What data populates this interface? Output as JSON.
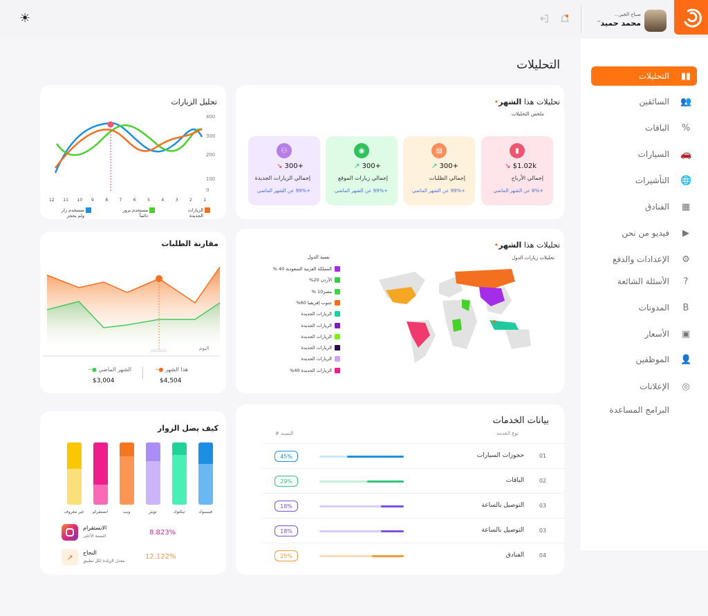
{
  "header": {
    "greeting": "صباح الخير...",
    "user_name": "محمد حميد",
    "chevron": "⌄",
    "bell": "🔔",
    "logout": "⇦",
    "theme": "☀"
  },
  "page_title": "التحليلات",
  "sidebar": {
    "items": [
      {
        "label": "التحليلات",
        "icon": "▮▮"
      },
      {
        "label": "السائقين",
        "icon": "👥"
      },
      {
        "label": "الباقات",
        "icon": "%"
      },
      {
        "label": "السيارات",
        "icon": "🚗"
      },
      {
        "label": "التأشيرات",
        "icon": "🌐"
      },
      {
        "label": "الفنادق",
        "icon": "▦"
      },
      {
        "label": "فيديو من نحن",
        "icon": "▶"
      },
      {
        "label": "الإعدادات والدفع",
        "icon": "⚙"
      },
      {
        "label": "الأسئلة الشائعة",
        "icon": "?"
      },
      {
        "label": "المدونات",
        "icon": "B"
      },
      {
        "label": "الأسعار",
        "icon": "▣"
      },
      {
        "label": "الموظفين",
        "icon": "👤"
      },
      {
        "label": "الإعلانات",
        "icon": "◎"
      },
      {
        "label": "البرامج المساعدة",
        "icon": ""
      }
    ]
  },
  "monthly": {
    "title_prefix": "تحليلات هذا",
    "title_bold": "الشهر",
    "subtitle": "ملخص التحليلات",
    "cards": [
      {
        "icon": "▮",
        "value": "$1.02k",
        "label": "إجمالي الأرباح",
        "change": "+8% عن الشهر الماضي",
        "trend": "down",
        "bg": "#ffe4ea",
        "icbg": "#f0566f"
      },
      {
        "icon": "▤",
        "value": "300+",
        "label": "إجمالي الطلبات",
        "change": "+99% عن الشهر الماضي",
        "trend": "up",
        "bg": "#fff2dd",
        "icbg": "#ff8e5c"
      },
      {
        "icon": "◉",
        "value": "300+",
        "label": "إجمالي زيارات الموقع",
        "change": "+99% عن الشهر الماضي",
        "trend": "up",
        "bg": "#defbe6",
        "icbg": "#30c25a"
      },
      {
        "icon": "⚇",
        "value": "300+",
        "label": "إجمالي الزيارات الجديدة",
        "change": "+99% عن الشهر الماضي",
        "trend": "down",
        "bg": "#f2e8ff",
        "icbg": "#b77ee8"
      }
    ]
  },
  "visits": {
    "title": "تحليل الزيارات",
    "ylabels": [
      "400",
      "300",
      "200",
      "100",
      "0"
    ],
    "xlabels": [
      "12",
      "11",
      "10",
      "9",
      "8",
      "7",
      "6",
      "5",
      "4",
      "3",
      "2",
      "1"
    ],
    "legend": [
      {
        "label": "الزيارات الجديدة",
        "color": "#f37021"
      },
      {
        "label": "مستخدم يزور دائماً",
        "color": "#47d22a"
      },
      {
        "label": "مستخدم زار ولم يحجز",
        "color": "#1a8fe3"
      }
    ]
  },
  "countries": {
    "title_prefix": "تحليلات هذا",
    "title_bold": "الشهر",
    "subtitle": "تحليلات زيارات الدول",
    "legend_title": "نسبة الدول",
    "legend": [
      {
        "label": "المملكة العربية السعودية 40 %",
        "color": "#a42de8"
      },
      {
        "label": "الأردن 20%",
        "color": "#37c94a"
      },
      {
        "label": "مصر10 %",
        "color": "#43d34a"
      },
      {
        "label": "جنوب إفريقيا 60%",
        "color": "#f37021"
      },
      {
        "label": "الزيارات الجديدة",
        "color": "#17d19e"
      },
      {
        "label": "الزيارات الجديدة",
        "color": "#7d1fb5"
      },
      {
        "label": "الزيارات الجديدة",
        "color": "#7ef01a"
      },
      {
        "label": "الزيارات الجديدة",
        "color": "#2a0a48"
      },
      {
        "label": "الزيارات الجديدة",
        "color": "#d3a3f5"
      },
      {
        "label": "الزيارات الجديدة 40%",
        "color": "#ee1f8d"
      }
    ]
  },
  "orders": {
    "title": "مقارنة الطلبات",
    "axis_label": "اليوم",
    "tick": "2022/02/25",
    "this_month_label": "هذا الشهر",
    "this_month_value": "$4,504",
    "last_month_label": "الشهر الماضي",
    "last_month_value": "$3,004"
  },
  "services": {
    "title": "بيانات الخدمات",
    "col_type": "نوع الخدمة",
    "col_pct": "النسبة #",
    "rows": [
      {
        "num": "01",
        "name": "حجوزات السيارات",
        "pct": "45%",
        "color": "#1a8fe3",
        "light": "#cfe7f9",
        "fill": 0.45
      },
      {
        "num": "02",
        "name": "الباقات",
        "pct": "29%",
        "color": "#2ec47a",
        "light": "#c5f0da",
        "fill": 0.29
      },
      {
        "num": "03",
        "name": "التوصيل بالساعة",
        "pct": "18%",
        "color": "#7b4fe0",
        "light": "#d9cbf6",
        "fill": 0.18
      },
      {
        "num": "03",
        "name": "التوصيل بالساعة",
        "pct": "18%",
        "color": "#7b4fe0",
        "light": "#d9cbf6",
        "fill": 0.18
      },
      {
        "num": "04",
        "name": "الفنادق",
        "pct": "25%",
        "color": "#f59a3a",
        "light": "#fbdcb8",
        "fill": 0.25
      }
    ]
  },
  "visitors": {
    "title": "كيف يصل الزوار",
    "bars": [
      {
        "label": "فيسبوك",
        "top": "#1a8fe3",
        "bot": "#69b8f4",
        "fill": 0.65
      },
      {
        "label": "تيكتوك",
        "top": "#20d39a",
        "bot": "#49f0b6",
        "fill": 0.8
      },
      {
        "label": "تويتر",
        "top": "#ab8ef5",
        "bot": "#cbb5f8",
        "fill": 0.7
      },
      {
        "label": "ويب",
        "top": "#f57620",
        "bot": "#fc9652",
        "fill": 0.78
      },
      {
        "label": "انستقرام",
        "top": "#ee1f8d",
        "bot": "#fb6ab6",
        "fill": 0.32
      },
      {
        "label": "غير معروف",
        "top": "#fbc800",
        "bot": "#fbe07a",
        "fill": 0.58
      }
    ],
    "insta_title": "الانستقرام",
    "insta_sub": "النسبة الأعلى",
    "insta_value": "8.823%",
    "success_title": "النجاح",
    "success_sub": "معدل الزيادة لكل تطبيق",
    "success_value": "12.122%"
  }
}
